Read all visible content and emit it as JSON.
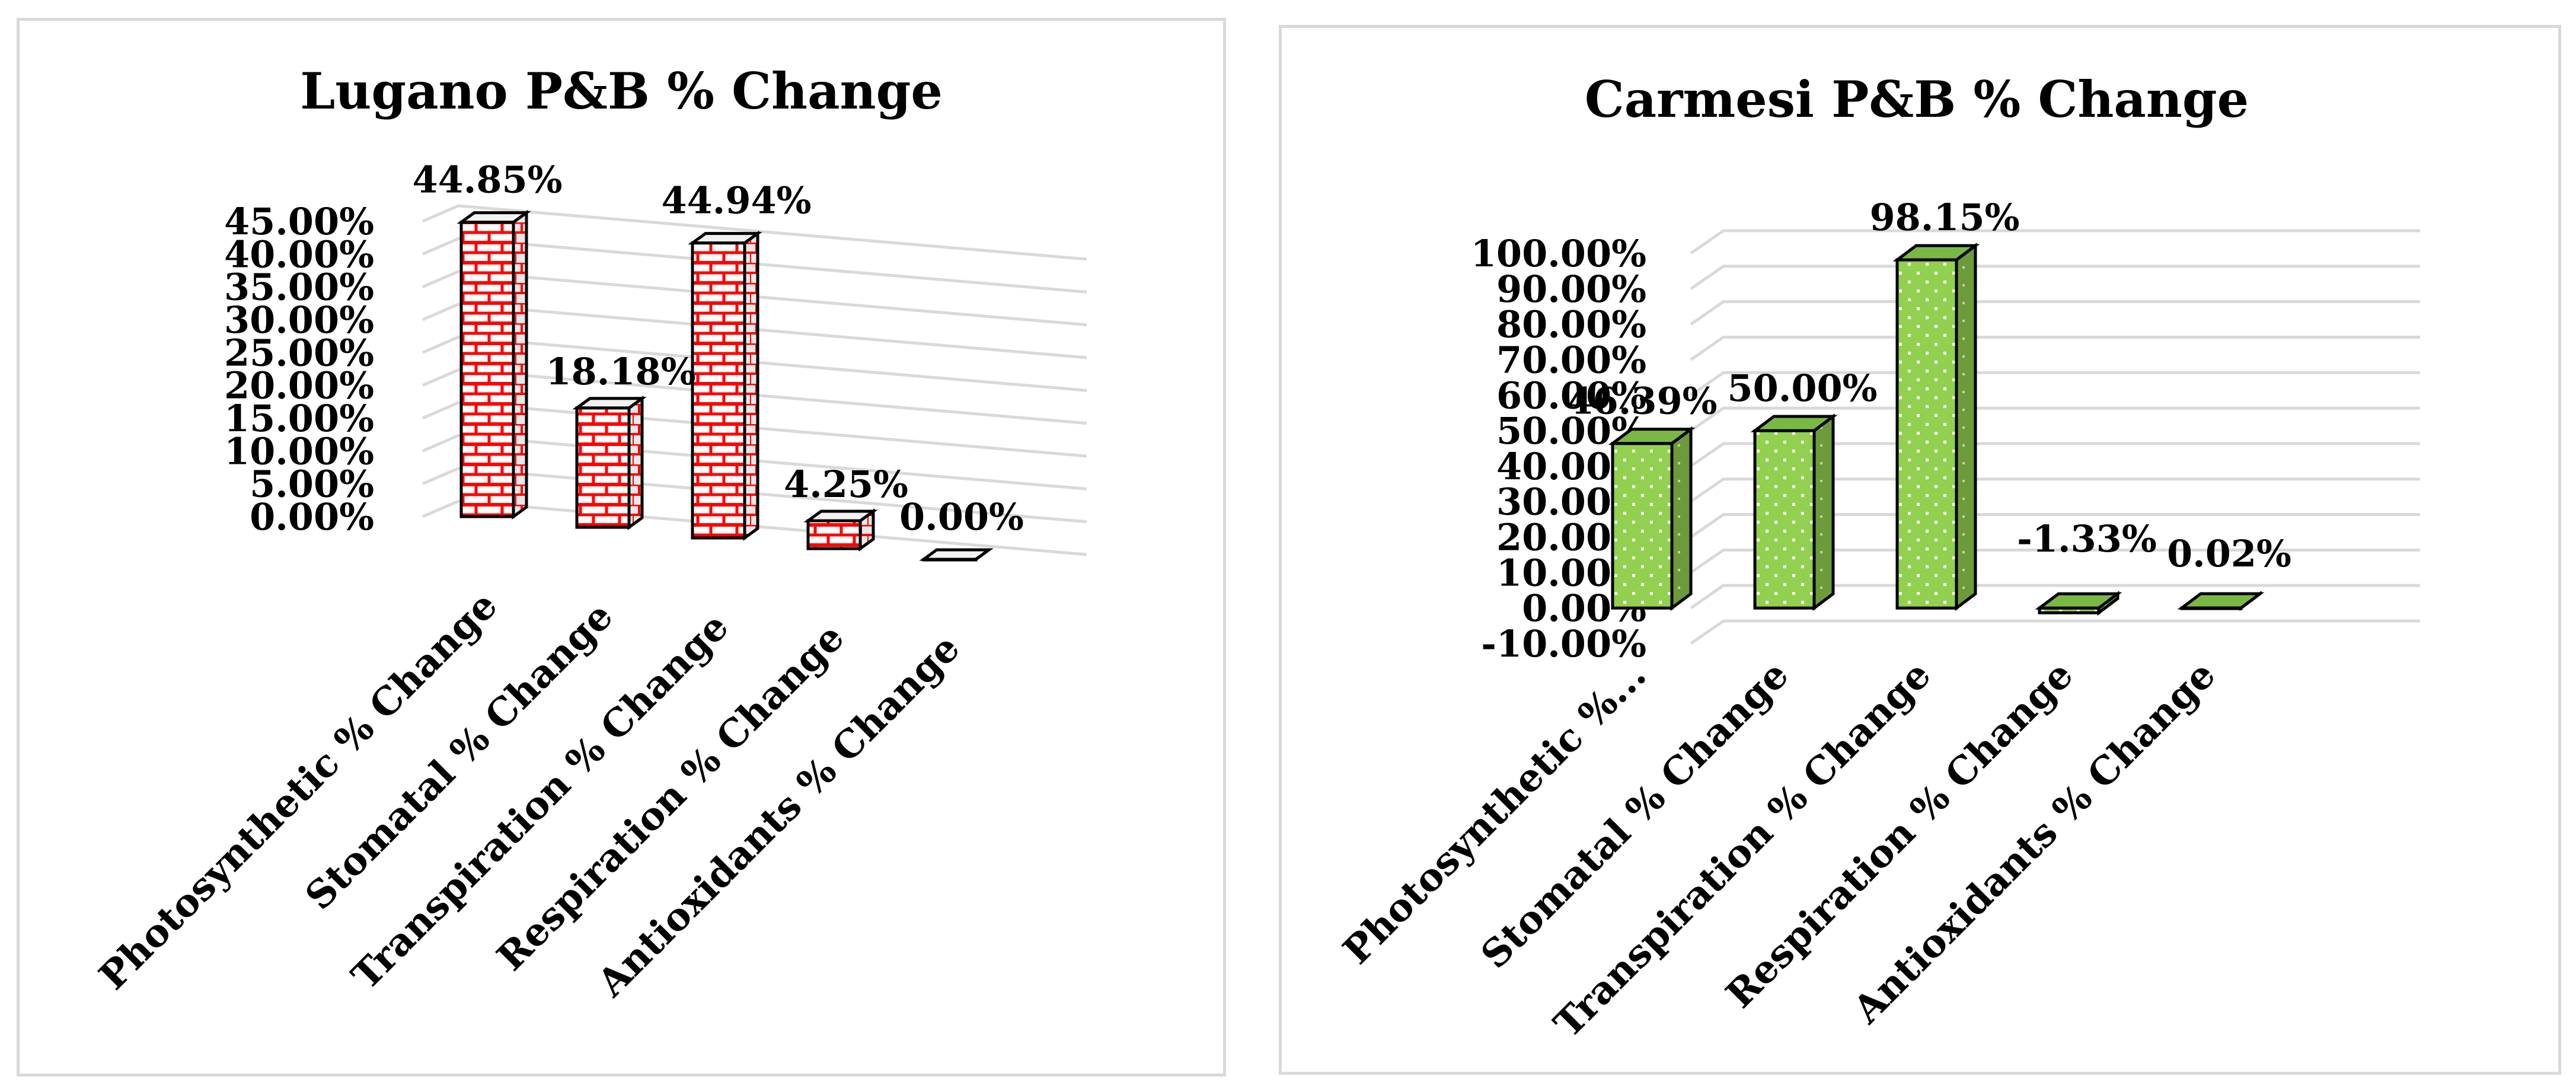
{
  "chart_data": [
    {
      "type": "bar",
      "title": "Lugano P&B % Change",
      "categories": [
        "Photosynthetic % Change",
        "Stomatal % Change",
        "Transpiration % Change",
        "Respiration % Change",
        "Antioxidants % Change"
      ],
      "values": [
        44.85,
        18.18,
        44.94,
        4.25,
        0.0
      ],
      "data_labels": [
        "44.85%",
        "18.18%",
        "44.94%",
        "4.25%",
        "0.00%"
      ],
      "yticks": [
        "0.00%",
        "5.00%",
        "10.00%",
        "15.00%",
        "20.00%",
        "25.00%",
        "30.00%",
        "35.00%",
        "40.00%",
        "45.00%"
      ],
      "ylim": [
        0,
        45
      ],
      "grid": true,
      "bar_pattern": "brick",
      "colors": {
        "fill": "#ffffff",
        "pattern": "#ff0000",
        "outline": "#000000"
      }
    },
    {
      "type": "bar",
      "title": "Carmesi P&B % Change",
      "categories": [
        "Photosynthetic %...",
        "Stomatal % Change",
        "Transpiration % Change",
        "Respiration % Change",
        "Antioxidants % Change"
      ],
      "values": [
        46.39,
        50.0,
        98.15,
        -1.33,
        0.02
      ],
      "data_labels": [
        "46.39%",
        "50.00%",
        "98.15%",
        "-1.33%",
        "0.02%"
      ],
      "yticks": [
        "-10.00%",
        "0.00%",
        "10.00%",
        "20.00%",
        "30.00%",
        "40.00%",
        "50.00%",
        "60.00%",
        "70.00%",
        "80.00%",
        "90.00%",
        "100.00%"
      ],
      "ylim": [
        -10,
        100
      ],
      "grid": true,
      "bar_pattern": "dots",
      "colors": {
        "fill": "#92d050",
        "pattern": "#ffffff",
        "side": "#6d9a3a",
        "outline": "#000000"
      }
    }
  ]
}
